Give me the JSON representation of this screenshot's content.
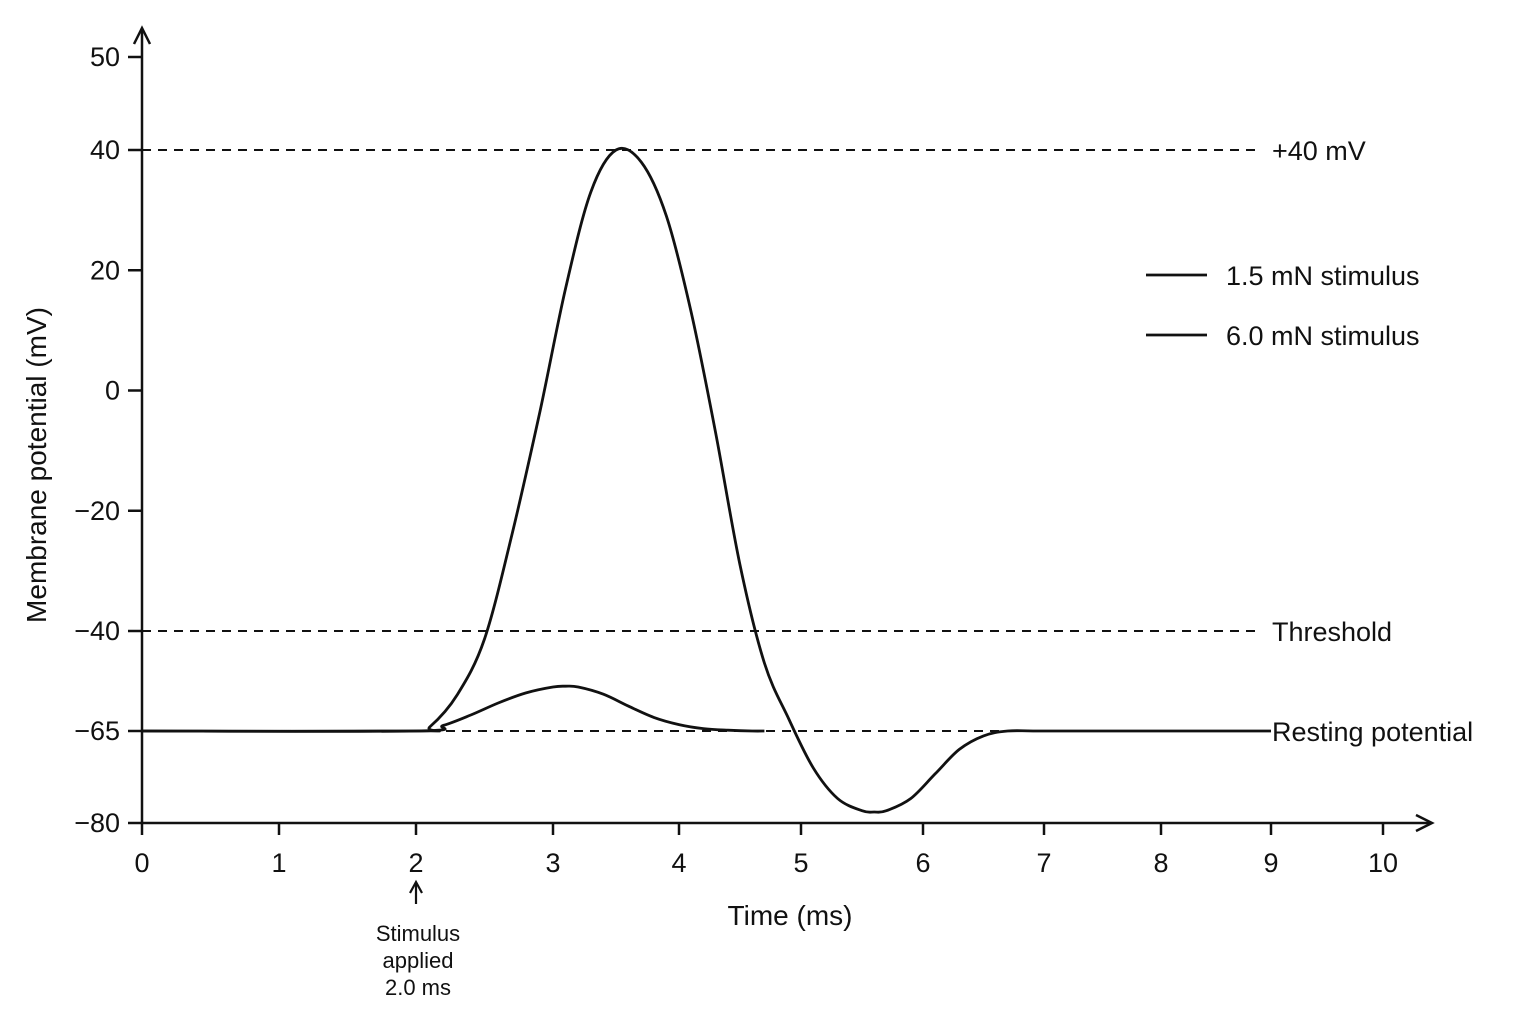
{
  "chart_data": {
    "type": "line",
    "title": "",
    "xlabel": "Time (ms)",
    "ylabel": "Membrane potential (mV)",
    "xlim": [
      0,
      10
    ],
    "ylim": [
      -80,
      50
    ],
    "x_ticks": [
      0,
      1,
      2,
      3,
      4,
      5,
      6,
      7,
      8,
      9,
      10
    ],
    "y_ticks": [
      50,
      40,
      20,
      0,
      -20,
      -40,
      -65,
      -80
    ],
    "y_tick_labels": [
      "50",
      "40",
      "20",
      "0",
      "−20",
      "−40",
      "−65",
      "−80"
    ],
    "grid": false,
    "legend_position": "right",
    "reference_lines": [
      {
        "label": "+40 mV",
        "y": 40
      },
      {
        "label": "Threshold",
        "y": -40
      },
      {
        "label": "Resting potential",
        "y": -65
      }
    ],
    "series": [
      {
        "name": "1.5 mN stimulus",
        "x": [
          0,
          2.0,
          2.2,
          2.4,
          2.6,
          2.8,
          3.0,
          3.1,
          3.2,
          3.4,
          3.6,
          3.8,
          4.0,
          4.2,
          4.4,
          4.6,
          4.7
        ],
        "y": [
          -65,
          -65,
          -63.6,
          -61.0,
          -58.0,
          -55.5,
          -54.0,
          -53.8,
          -54.0,
          -55.8,
          -58.8,
          -61.6,
          -63.4,
          -64.4,
          -64.8,
          -65,
          -65
        ]
      },
      {
        "name": "6.0 mN stimulus",
        "x": [
          0,
          2.0,
          2.1,
          2.3,
          2.5,
          2.7,
          2.9,
          3.1,
          3.3,
          3.5,
          3.7,
          3.9,
          4.1,
          4.3,
          4.5,
          4.7,
          4.9,
          5.1,
          5.3,
          5.5,
          5.6,
          5.7,
          5.9,
          6.1,
          6.3,
          6.5,
          6.7,
          7.0,
          8.0,
          9.0
        ],
        "y": [
          -65,
          -65,
          -64.0,
          -56.0,
          -42.0,
          -24.0,
          -4.0,
          17.0,
          33.0,
          40.0,
          38.0,
          29.0,
          13.0,
          -7.0,
          -29.0,
          -48.0,
          -62.0,
          -71.0,
          -76.0,
          -78.0,
          -78.2,
          -78.0,
          -76.0,
          -72.0,
          -68.0,
          -65.8,
          -65,
          -65,
          -65,
          -65
        ]
      }
    ],
    "annotations": {
      "stimulus": {
        "x": 2.0,
        "lines": [
          "Stimulus",
          "applied",
          "2.0 ms"
        ]
      }
    }
  }
}
